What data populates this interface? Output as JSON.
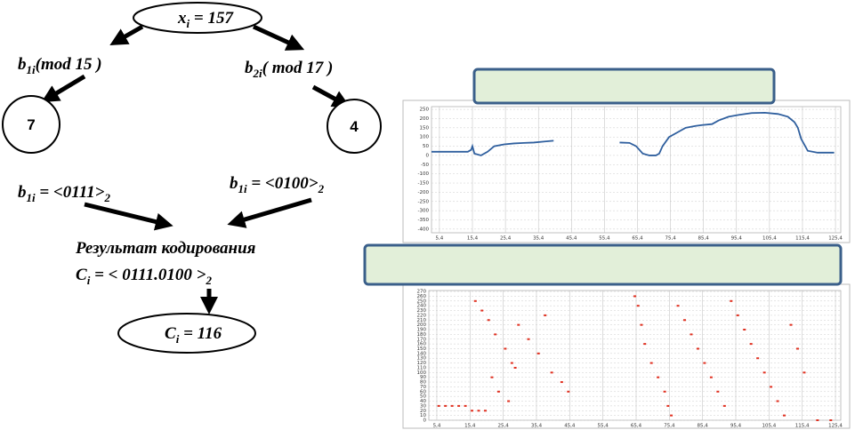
{
  "diagram": {
    "input": [
      "x",
      "i",
      " = 157"
    ],
    "mod_left": [
      "b",
      "1i",
      "(mod 15 )"
    ],
    "mod_right": [
      "b",
      "2i",
      "( mod 17 )"
    ],
    "residue_left": "7",
    "residue_right": "4",
    "binary_left": [
      "b",
      "1i",
      " = <0111>",
      "2"
    ],
    "binary_right": [
      "b",
      "1i",
      " = <0100>",
      "2"
    ],
    "result_label": "Результат кодирования",
    "code": [
      "C",
      "i",
      " = < 0111.0100 >",
      "2"
    ],
    "output": [
      "C",
      "i",
      " = 116"
    ]
  },
  "chart_data": [
    {
      "type": "line",
      "x": [
        3,
        6,
        9,
        12,
        14,
        15,
        15.4,
        16,
        18,
        20,
        22,
        25,
        28,
        31,
        34,
        37,
        40,
        50,
        60,
        63,
        65,
        67,
        69,
        71,
        72,
        73,
        75,
        78,
        80,
        83,
        85,
        88,
        90,
        93,
        96,
        100,
        104,
        108,
        111,
        113,
        114,
        115,
        117,
        120,
        125
      ],
      "series": [
        {
          "color": "#2f5f9e",
          "values": [
            20,
            20,
            20,
            20,
            20,
            30,
            50,
            10,
            0,
            20,
            50,
            60,
            65,
            68,
            70,
            75,
            80,
            null,
            70,
            68,
            50,
            10,
            0,
            0,
            10,
            50,
            100,
            130,
            150,
            160,
            165,
            170,
            190,
            210,
            220,
            230,
            232,
            225,
            210,
            180,
            150,
            90,
            25,
            15,
            15
          ]
        }
      ],
      "xlim": [
        3,
        127
      ],
      "xticks": [
        {
          "value": 5.4,
          "label": "5,4"
        },
        {
          "value": 15.4,
          "label": "15,4"
        },
        {
          "value": 25.4,
          "label": "25,4"
        },
        {
          "value": 35.4,
          "label": "35,4"
        },
        {
          "value": 45.4,
          "label": "45,4"
        },
        {
          "value": 55.4,
          "label": "55,4"
        },
        {
          "value": 65.4,
          "label": "65,4"
        },
        {
          "value": 75.4,
          "label": "75,4"
        },
        {
          "value": 85.4,
          "label": "85,4"
        },
        {
          "value": 95.4,
          "label": "95,4"
        },
        {
          "value": 105.4,
          "label": "105,4"
        },
        {
          "value": 115.4,
          "label": "115,4"
        },
        {
          "value": 125.4,
          "label": "125,4"
        }
      ],
      "ylim": [
        -420,
        265
      ],
      "yticks": [
        250,
        200,
        150,
        100,
        50,
        0,
        -50,
        -100,
        -150,
        -200,
        -250,
        -300,
        -350,
        -400
      ],
      "grid": true
    },
    {
      "type": "scatter",
      "x": [
        6,
        8,
        10,
        12,
        14,
        16,
        18,
        20,
        17,
        19,
        21,
        23,
        26,
        28,
        22,
        24,
        27,
        29,
        30,
        33,
        36,
        38,
        40,
        43,
        45,
        65,
        66,
        67,
        68,
        70,
        72,
        74,
        75,
        76,
        78,
        80,
        82,
        84,
        86,
        88,
        90,
        92,
        94,
        96,
        98,
        100,
        102,
        104,
        106,
        108,
        110,
        112,
        114,
        116,
        120,
        124
      ],
      "series": [
        {
          "color": "#e03020",
          "values": [
            30,
            30,
            30,
            30,
            30,
            20,
            20,
            20,
            250,
            230,
            210,
            180,
            150,
            120,
            90,
            60,
            40,
            110,
            200,
            170,
            140,
            220,
            100,
            80,
            60,
            260,
            240,
            200,
            160,
            120,
            90,
            60,
            30,
            10,
            240,
            210,
            180,
            150,
            120,
            90,
            60,
            30,
            250,
            220,
            190,
            160,
            130,
            100,
            70,
            40,
            10,
            200,
            150,
            100,
            0,
            0
          ]
        }
      ],
      "xlim": [
        3,
        127
      ],
      "xticks": [
        {
          "value": 5.4,
          "label": "5,4"
        },
        {
          "value": 15.4,
          "label": "15,4"
        },
        {
          "value": 25.4,
          "label": "25,4"
        },
        {
          "value": 35.4,
          "label": "35,4"
        },
        {
          "value": 45.4,
          "label": "45,4"
        },
        {
          "value": 55.4,
          "label": "55,4"
        },
        {
          "value": 65.4,
          "label": "65,4"
        },
        {
          "value": 75.4,
          "label": "75,4"
        },
        {
          "value": 85.4,
          "label": "85,4"
        },
        {
          "value": 95.4,
          "label": "95,4"
        },
        {
          "value": 105.4,
          "label": "105,4"
        },
        {
          "value": 115.4,
          "label": "115,4"
        },
        {
          "value": 125.4,
          "label": "125,4"
        }
      ],
      "ylim": [
        0,
        272
      ],
      "yticks": [
        0,
        10,
        20,
        30,
        40,
        50,
        60,
        70,
        80,
        90,
        100,
        110,
        120,
        130,
        140,
        150,
        160,
        170,
        180,
        190,
        200,
        210,
        220,
        230,
        240,
        250,
        260,
        270
      ],
      "grid": true
    }
  ]
}
